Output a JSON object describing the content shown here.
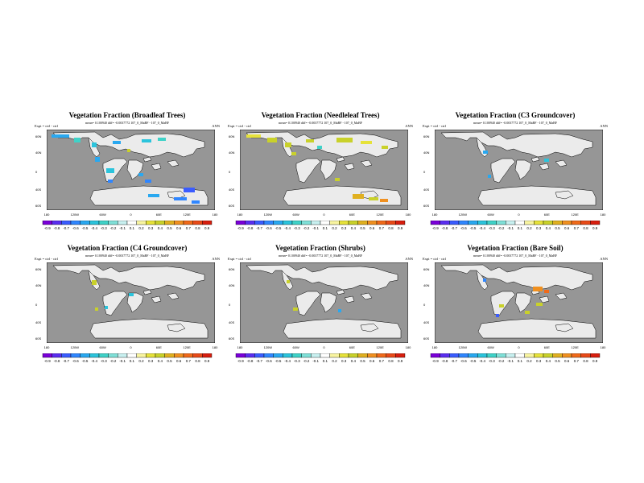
{
  "colorbar": {
    "labels": [
      "-0.9",
      "-0.8",
      "-0.7",
      "-0.6",
      "-0.5",
      "-0.4",
      "-0.3",
      "-0.2",
      "-0.1",
      "0.1",
      "0.2",
      "0.3",
      "0.4",
      "0.5",
      "0.6",
      "0.7",
      "0.8",
      "0.9"
    ],
    "colors": [
      "#7a00d9",
      "#5a2ef0",
      "#3a5cff",
      "#2f86ff",
      "#29a8f0",
      "#2bc4dc",
      "#3fd2c8",
      "#7fe0d8",
      "#c8f0f0",
      "#ffffff",
      "#f8f4a0",
      "#e6e23a",
      "#c9d12a",
      "#e0b020",
      "#f09020",
      "#f06a1a",
      "#e84a18",
      "#d81e0e"
    ]
  },
  "axes": {
    "lon_labels": [
      "180",
      "120W",
      "60W",
      "0",
      "60E",
      "120E",
      "180"
    ],
    "lat_labels": [
      "60N",
      "40N",
      "0",
      "40S",
      "60S"
    ]
  },
  "panels": [
    {
      "title": "Vegetation Fraction (Broadleaf Trees)",
      "info": "mean= 0.100940 diff= -0.0037772",
      "expt": "Expt = ctrl - ctrl",
      "case": "107_0_MaBF - 107_0_MaBF",
      "season": "ANN"
    },
    {
      "title": "Vegetation Fraction (Needleleaf Trees)",
      "info": "mean= 0.100940 diff= -0.0037772",
      "expt": "Expt = ctrl - ctrl",
      "case": "107_0_MaBF - 107_0_MaBF",
      "season": "ANN"
    },
    {
      "title": "Vegetation Fraction (C3 Groundcover)",
      "info": "mean= 0.100940 diff= -0.0037772",
      "expt": "Expt = ctrl - ctrl",
      "case": "107_0_MaBF - 107_0_MaBF",
      "season": "ANN"
    },
    {
      "title": "Vegetation Fraction (C4 Groundcover)",
      "info": "mean= 0.100940 diff= -0.0037772",
      "expt": "Expt = ctrl - ctrl",
      "case": "107_0_MaBF - 107_0_MaBF",
      "season": "ANN"
    },
    {
      "title": "Vegetation Fraction (Shrubs)",
      "info": "mean= 0.100940 diff= -0.0037772",
      "expt": "Expt = ctrl - ctrl",
      "case": "107_0_MaBF - 107_0_MaBF",
      "season": "ANN"
    },
    {
      "title": "Vegetation Fraction (Bare Soil)",
      "info": "mean= 0.100940 diff= -0.0037772",
      "expt": "Expt = ctrl - ctrl",
      "case": "107_0_MaBF - 107_0_MaBF",
      "season": "ANN"
    }
  ]
}
